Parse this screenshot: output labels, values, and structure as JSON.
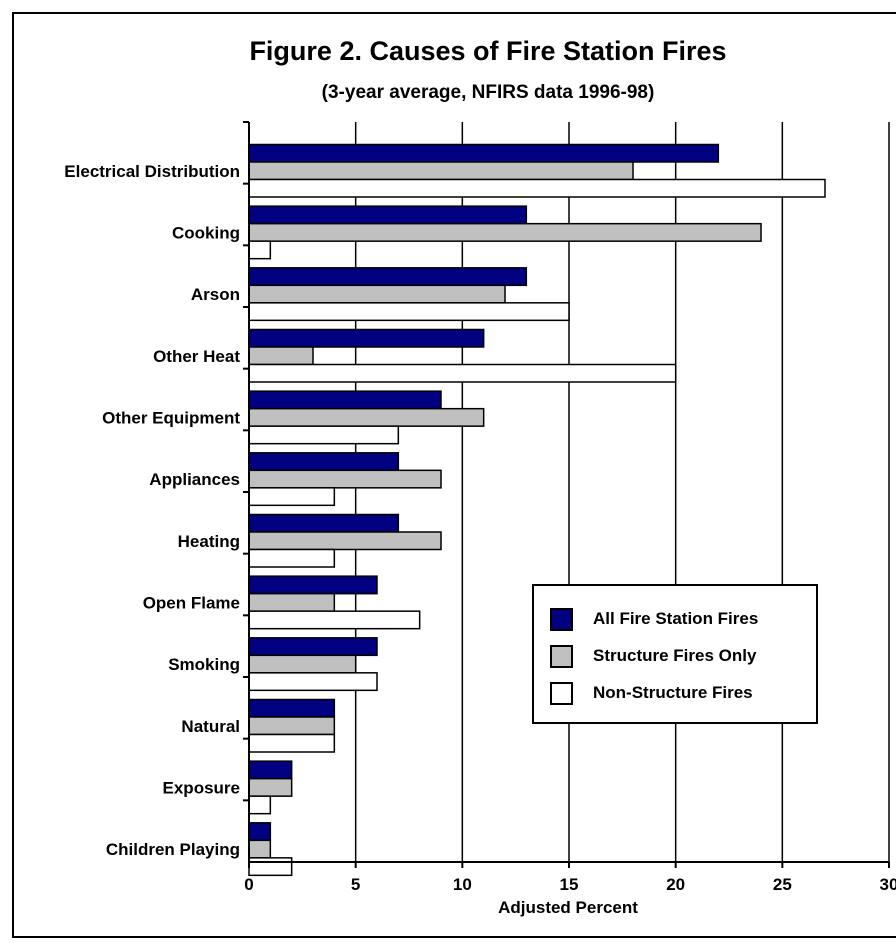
{
  "chart_data": {
    "type": "bar",
    "orientation": "horizontal",
    "title": "Figure 2.  Causes of Fire Station Fires",
    "subtitle": "(3-year average, NFIRS data 1996-98)",
    "xlabel": "Adjusted Percent",
    "ylabel": "",
    "xlim": [
      0,
      30
    ],
    "xticks": [
      "0",
      "5",
      "10",
      "15",
      "20",
      "25",
      "30"
    ],
    "grid": "vertical",
    "legend_position": "right",
    "categories": [
      "Electrical Distribution",
      "Cooking",
      "Arson",
      "Other Heat",
      "Other Equipment",
      "Appliances",
      "Heating",
      "Open Flame",
      "Smoking",
      "Natural",
      "Exposure",
      "Children Playing"
    ],
    "series": [
      {
        "name": "All Fire Station Fires",
        "color": "#000080",
        "values": [
          22,
          13,
          13,
          11,
          9,
          7,
          7,
          6,
          6,
          4,
          2,
          1
        ]
      },
      {
        "name": "Structure Fires Only",
        "color": "#c0c0c0",
        "values": [
          18,
          24,
          12,
          3,
          11,
          9,
          9,
          4,
          5,
          4,
          2,
          1
        ]
      },
      {
        "name": "Non-Structure Fires",
        "color": "#ffffff",
        "values": [
          27,
          1,
          15,
          20,
          7,
          4,
          4,
          8,
          6,
          4,
          1,
          2
        ]
      }
    ]
  }
}
